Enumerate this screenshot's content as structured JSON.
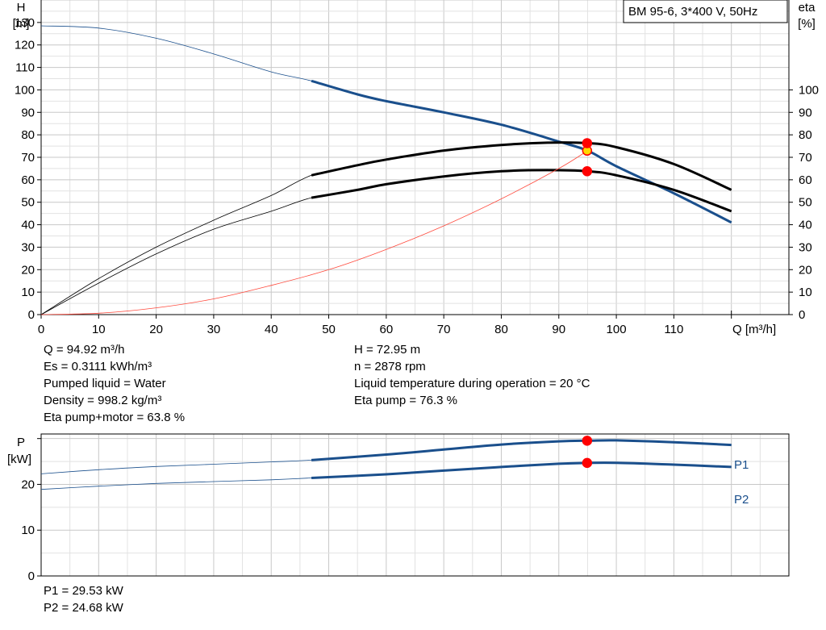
{
  "main_chart": {
    "title_box": "BM 95-6, 3*400 V, 50Hz",
    "y_left_label": [
      "H",
      "[m]"
    ],
    "y_right_label": [
      "eta",
      "[%]"
    ],
    "x_label": "Q [m³/h]",
    "x_range": [
      0,
      130
    ],
    "y_range": [
      0,
      140
    ],
    "x_ticks": [
      0,
      10,
      20,
      30,
      40,
      50,
      60,
      70,
      80,
      90,
      100,
      110
    ],
    "y_left_ticks": [
      0,
      10,
      20,
      30,
      40,
      50,
      60,
      70,
      80,
      90,
      100,
      110,
      120,
      130
    ],
    "y_right_ticks": [
      0,
      10,
      20,
      30,
      40,
      50,
      60,
      70,
      80,
      90,
      100
    ]
  },
  "power_chart": {
    "y_label": [
      "P",
      "[kW]"
    ],
    "y_range": [
      0,
      31
    ],
    "y_ticks": [
      0,
      10,
      20
    ],
    "series_labels": [
      "P1",
      "P2"
    ]
  },
  "chart_data": [
    {
      "type": "line",
      "x_range": [
        0,
        130
      ],
      "y_range": [
        0,
        140
      ],
      "series": [
        {
          "name": "H",
          "color": "#1a4f8c",
          "range": [
            47,
            120
          ],
          "points": [
            [
              0,
              128.5
            ],
            [
              10,
              127.5
            ],
            [
              20,
              123
            ],
            [
              30,
              116
            ],
            [
              40,
              108
            ],
            [
              47,
              104
            ],
            [
              55,
              98
            ],
            [
              60,
              95
            ],
            [
              70,
              90
            ],
            [
              80,
              84.5
            ],
            [
              90,
              77
            ],
            [
              95,
              72.95
            ],
            [
              100,
              66
            ],
            [
              110,
              54
            ],
            [
              120,
              41
            ]
          ]
        },
        {
          "name": "eta pump",
          "color": "#000000",
          "range": [
            47,
            120
          ],
          "points": [
            [
              0,
              0
            ],
            [
              10,
              16
            ],
            [
              20,
              30
            ],
            [
              30,
              42
            ],
            [
              40,
              53
            ],
            [
              47,
              62
            ],
            [
              55,
              66.5
            ],
            [
              60,
              69
            ],
            [
              70,
              73
            ],
            [
              80,
              75.5
            ],
            [
              88,
              76.5
            ],
            [
              95,
              76.3
            ],
            [
              100,
              74.5
            ],
            [
              110,
              67
            ],
            [
              120,
              55.5
            ]
          ]
        },
        {
          "name": "eta pump+motor",
          "color": "#000000",
          "range": [
            47,
            120
          ],
          "points": [
            [
              0,
              0
            ],
            [
              10,
              14
            ],
            [
              20,
              27
            ],
            [
              30,
              38
            ],
            [
              40,
              46
            ],
            [
              47,
              52
            ],
            [
              55,
              55.5
            ],
            [
              60,
              58
            ],
            [
              70,
              61.5
            ],
            [
              80,
              63.8
            ],
            [
              88,
              64.3
            ],
            [
              95,
              63.8
            ],
            [
              100,
              62
            ],
            [
              110,
              55.5
            ],
            [
              120,
              46
            ]
          ]
        },
        {
          "name": "system curve",
          "color": "#ff4a3d",
          "range": [],
          "points": [
            [
              0,
              0
            ],
            [
              10,
              0.6
            ],
            [
              20,
              3
            ],
            [
              30,
              7
            ],
            [
              40,
              13
            ],
            [
              50,
              20
            ],
            [
              60,
              29
            ],
            [
              70,
              39.5
            ],
            [
              80,
              51.5
            ],
            [
              90,
              65
            ],
            [
              95,
              72.95
            ]
          ]
        }
      ],
      "markers": [
        {
          "q": 94.92,
          "v": 72.95,
          "color": "#ffd800",
          "stroke": "#ff0000"
        },
        {
          "q": 94.92,
          "v": 76.3,
          "color": "#ff0000",
          "stroke": "#ff0000"
        },
        {
          "q": 94.92,
          "v": 63.8,
          "color": "#ff0000",
          "stroke": "#ff0000"
        }
      ]
    },
    {
      "type": "line",
      "x_range": [
        0,
        130
      ],
      "y_range": [
        0,
        31
      ],
      "series": [
        {
          "name": "P1",
          "color": "#1a4f8c",
          "range": [
            47,
            120
          ],
          "points": [
            [
              0,
              22.3
            ],
            [
              10,
              23.2
            ],
            [
              20,
              23.9
            ],
            [
              30,
              24.4
            ],
            [
              40,
              24.9
            ],
            [
              47,
              25.3
            ],
            [
              60,
              26.5
            ],
            [
              70,
              27.6
            ],
            [
              80,
              28.7
            ],
            [
              90,
              29.4
            ],
            [
              95,
              29.53
            ],
            [
              100,
              29.6
            ],
            [
              110,
              29.2
            ],
            [
              120,
              28.6
            ]
          ]
        },
        {
          "name": "P2",
          "color": "#1a4f8c",
          "range": [
            47,
            120
          ],
          "points": [
            [
              0,
              18.9
            ],
            [
              10,
              19.6
            ],
            [
              20,
              20.2
            ],
            [
              30,
              20.6
            ],
            [
              40,
              21.0
            ],
            [
              47,
              21.4
            ],
            [
              60,
              22.2
            ],
            [
              70,
              23.0
            ],
            [
              80,
              23.8
            ],
            [
              90,
              24.5
            ],
            [
              95,
              24.68
            ],
            [
              100,
              24.7
            ],
            [
              110,
              24.3
            ],
            [
              120,
              23.8
            ]
          ]
        }
      ],
      "markers": [
        {
          "q": 94.92,
          "v": 29.53,
          "color": "#ff0000",
          "stroke": "#ff0000"
        },
        {
          "q": 94.92,
          "v": 24.68,
          "color": "#ff0000",
          "stroke": "#ff0000"
        }
      ]
    }
  ],
  "info_left": [
    "Q = 94.92 m³/h",
    "Es = 0.3111 kWh/m³",
    "Pumped liquid = Water",
    "Density = 998.2 kg/m³",
    "Eta pump+motor = 63.8 %"
  ],
  "info_right": [
    "H = 72.95 m",
    "n = 2878 rpm",
    "Liquid temperature during operation = 20 °C",
    "Eta pump = 76.3 %"
  ],
  "info_bottom": [
    "P1 = 29.53 kW",
    "P2 = 24.68 kW"
  ]
}
